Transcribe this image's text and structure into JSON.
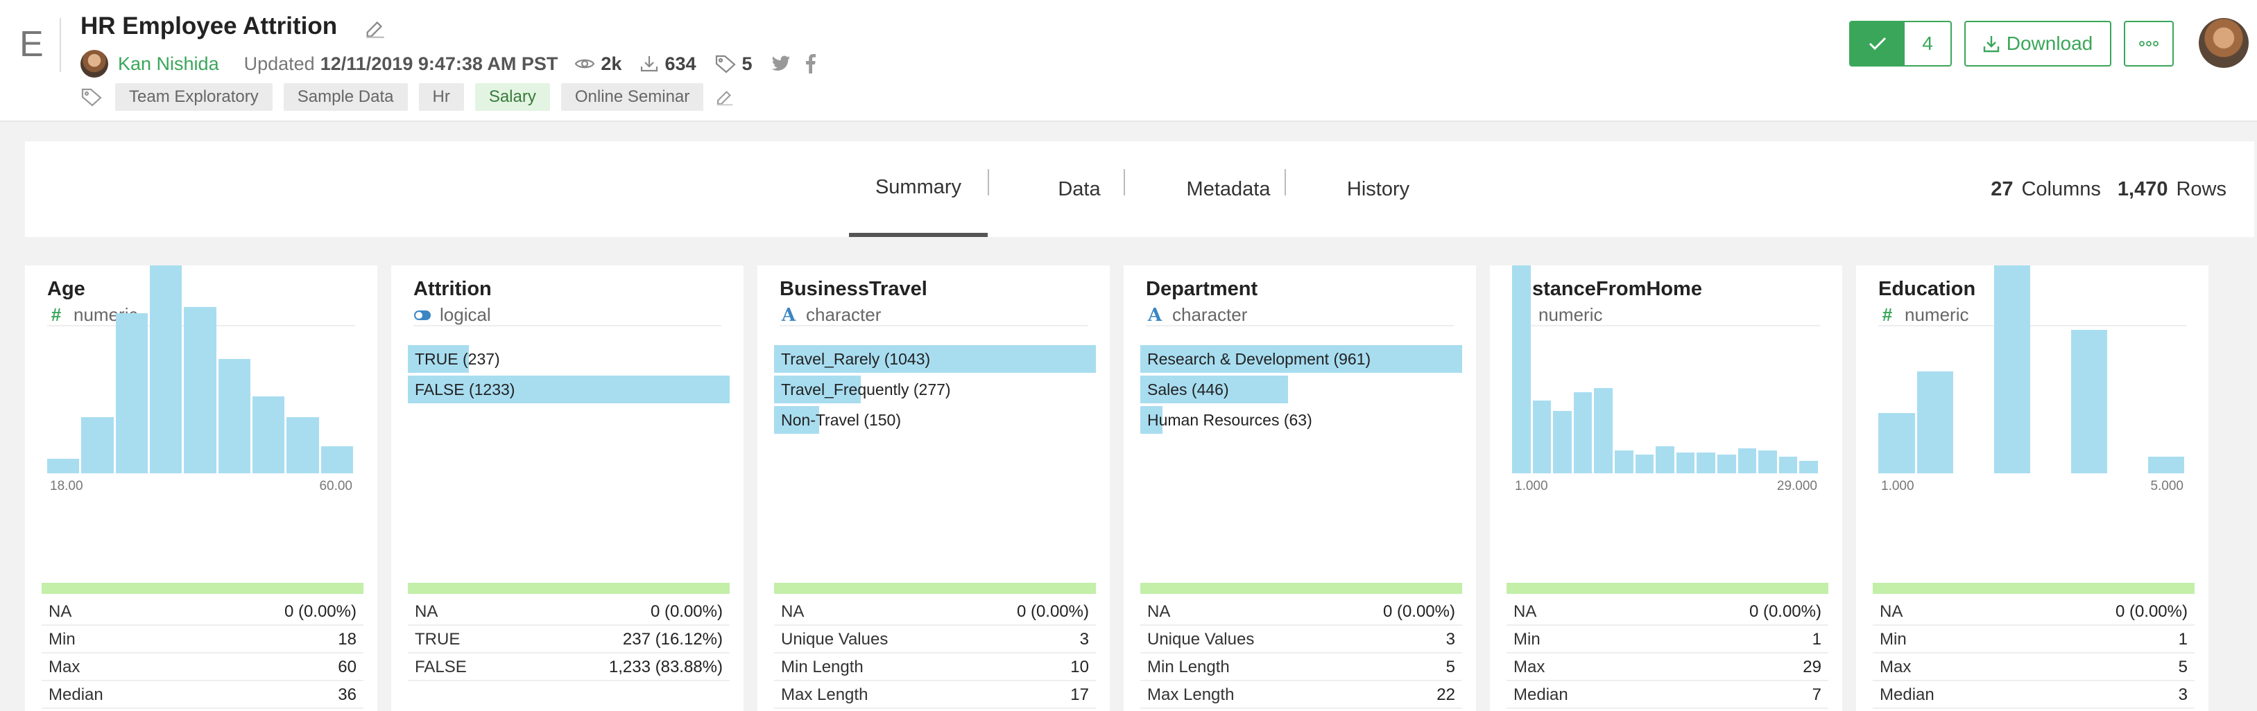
{
  "app": {
    "letter": "E"
  },
  "header": {
    "title": "HR Employee Attrition",
    "author": "Kan Nishida",
    "updated_label": "Updated",
    "updated_date": "12/11/2019 9:47:38 AM PST",
    "views": "2k",
    "downloads": "634",
    "tag_count": "5",
    "tags": [
      "Team Exploratory",
      "Sample Data",
      "Hr",
      "Salary",
      "Online Seminar"
    ],
    "check_count": "4",
    "download_label": "Download"
  },
  "tabs": [
    {
      "label": "Summary",
      "active": true
    },
    {
      "label": "Data",
      "active": false
    },
    {
      "label": "Metadata",
      "active": false
    },
    {
      "label": "History",
      "active": false
    }
  ],
  "summary": {
    "columns": "27",
    "columns_label": "Columns",
    "rows": "1,470",
    "rows_label": "Rows"
  },
  "colors": {
    "accent": "#3aa65a",
    "bar": "#a8ddf0",
    "quality": "#c3efa9",
    "char_icon": "#3b86c4"
  },
  "cards": [
    {
      "name": "Age",
      "type": "numeric",
      "icon": "hash-icon",
      "histogram": [
        0.07,
        0.27,
        0.77,
        1.0,
        0.8,
        0.55,
        0.37,
        0.27,
        0.13
      ],
      "axis_min": "18.00",
      "axis_max": "60.00",
      "stats": [
        [
          "NA",
          "0 (0.00%)"
        ],
        [
          "Min",
          "18"
        ],
        [
          "Max",
          "60"
        ],
        [
          "Median",
          "36"
        ]
      ]
    },
    {
      "name": "Attrition",
      "type": "logical",
      "icon": "toggle-icon",
      "categories": [
        {
          "label": "TRUE (237)",
          "fraction": 0.19
        },
        {
          "label": "FALSE (1233)",
          "fraction": 1.0
        }
      ],
      "stats": [
        [
          "NA",
          "0 (0.00%)"
        ],
        [
          "TRUE",
          "237 (16.12%)"
        ],
        [
          "FALSE",
          "1,233 (83.88%)"
        ]
      ]
    },
    {
      "name": "BusinessTravel",
      "type": "character",
      "icon": "letter-a-icon",
      "categories": [
        {
          "label": "Travel_Rarely (1043)",
          "fraction": 1.0
        },
        {
          "label": "Travel_Frequently (277)",
          "fraction": 0.27
        },
        {
          "label": "Non-Travel (150)",
          "fraction": 0.14
        }
      ],
      "stats": [
        [
          "NA",
          "0 (0.00%)"
        ],
        [
          "Unique Values",
          "3"
        ],
        [
          "Min Length",
          "10"
        ],
        [
          "Max Length",
          "17"
        ]
      ]
    },
    {
      "name": "Department",
      "type": "character",
      "icon": "letter-a-icon",
      "categories": [
        {
          "label": "Research & Development (961)",
          "fraction": 1.0
        },
        {
          "label": "Sales (446)",
          "fraction": 0.46
        },
        {
          "label": "Human Resources (63)",
          "fraction": 0.07
        }
      ],
      "stats": [
        [
          "NA",
          "0 (0.00%)"
        ],
        [
          "Unique Values",
          "3"
        ],
        [
          "Min Length",
          "5"
        ],
        [
          "Max Length",
          "22"
        ]
      ]
    },
    {
      "name": "DistanceFromHome",
      "type": "numeric",
      "icon": "hash-icon",
      "histogram": [
        1.0,
        0.35,
        0.3,
        0.39,
        0.41,
        0.11,
        0.09,
        0.13,
        0.1,
        0.1,
        0.09,
        0.12,
        0.11,
        0.08,
        0.06
      ],
      "axis_min": "1.000",
      "axis_max": "29.000",
      "stats": [
        [
          "NA",
          "0 (0.00%)"
        ],
        [
          "Min",
          "1"
        ],
        [
          "Max",
          "29"
        ],
        [
          "Median",
          "7"
        ]
      ]
    },
    {
      "name": "Education",
      "type": "numeric",
      "icon": "hash-icon",
      "histogram": [
        0.29,
        0.49,
        0.0,
        1.0,
        0.0,
        0.69,
        0.0,
        0.08
      ],
      "axis_min": "1.000",
      "axis_max": "5.000",
      "stats": [
        [
          "NA",
          "0 (0.00%)"
        ],
        [
          "Min",
          "1"
        ],
        [
          "Max",
          "5"
        ],
        [
          "Median",
          "3"
        ]
      ]
    }
  ]
}
